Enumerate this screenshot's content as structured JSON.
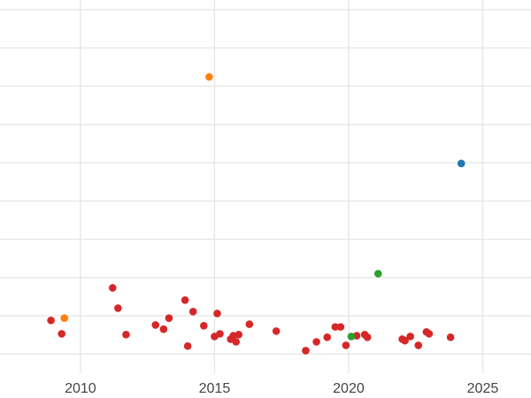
{
  "chart_data": {
    "type": "scatter",
    "title": "",
    "xlabel": "",
    "ylabel": "",
    "x_ticks": [
      2010,
      2015,
      2020,
      2025
    ],
    "x_tick_labels": [
      "2010",
      "2015",
      "2020",
      "2025"
    ],
    "xlim": [
      2007.0,
      2026.8
    ],
    "ylim": [
      -0.5,
      9.25
    ],
    "y_gridlines": [
      0,
      1,
      2,
      3,
      4,
      5,
      6,
      7,
      8,
      9
    ],
    "grid": true,
    "legend": "none",
    "background_color": "#ffffff",
    "gridline_color": "#e6e6e6",
    "tick_label_color": "#444444",
    "tick_font_size": 16,
    "marker_radius": 4.3,
    "series": [
      {
        "name": "red-series",
        "color": "#d62728",
        "points": [
          [
            2008.9,
            0.88
          ],
          [
            2009.3,
            0.53
          ],
          [
            2011.2,
            1.73
          ],
          [
            2011.4,
            1.2
          ],
          [
            2011.7,
            0.51
          ],
          [
            2012.8,
            0.76
          ],
          [
            2013.1,
            0.65
          ],
          [
            2013.3,
            0.94
          ],
          [
            2013.9,
            1.41
          ],
          [
            2014.0,
            0.21
          ],
          [
            2014.2,
            1.11
          ],
          [
            2014.6,
            0.74
          ],
          [
            2015.0,
            0.46
          ],
          [
            2015.1,
            1.06
          ],
          [
            2015.2,
            0.53
          ],
          [
            2015.6,
            0.39
          ],
          [
            2015.7,
            0.48
          ],
          [
            2015.8,
            0.32
          ],
          [
            2015.9,
            0.51
          ],
          [
            2016.3,
            0.78
          ],
          [
            2017.3,
            0.6
          ],
          [
            2018.4,
            0.09
          ],
          [
            2018.8,
            0.32
          ],
          [
            2019.2,
            0.44
          ],
          [
            2019.5,
            0.71
          ],
          [
            2019.7,
            0.71
          ],
          [
            2019.9,
            0.23
          ],
          [
            2020.3,
            0.48
          ],
          [
            2020.6,
            0.51
          ],
          [
            2020.7,
            0.44
          ],
          [
            2022.0,
            0.39
          ],
          [
            2022.1,
            0.35
          ],
          [
            2022.3,
            0.46
          ],
          [
            2022.6,
            0.23
          ],
          [
            2022.9,
            0.58
          ],
          [
            2023.0,
            0.53
          ],
          [
            2023.8,
            0.44
          ]
        ]
      },
      {
        "name": "orange-series",
        "color": "#ff7f0e",
        "points": [
          [
            2009.4,
            0.94
          ],
          [
            2014.8,
            7.24
          ]
        ]
      },
      {
        "name": "green-series",
        "color": "#2ca02c",
        "points": [
          [
            2020.1,
            0.46
          ],
          [
            2021.1,
            2.1
          ]
        ]
      },
      {
        "name": "blue-series",
        "color": "#1f77b4",
        "points": [
          [
            2024.2,
            4.98
          ]
        ]
      }
    ]
  }
}
